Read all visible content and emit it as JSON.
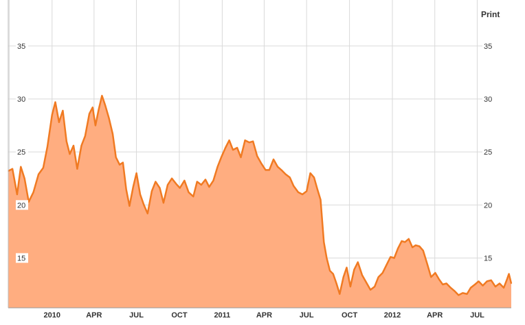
{
  "toolbar": {
    "print_label": "Print"
  },
  "colors": {
    "line": "#f07a22",
    "fill": "#ffad80",
    "grid": "#d9d9d9",
    "tick_box": "#ffffff"
  },
  "chart_data": {
    "type": "area",
    "grid": true,
    "ylim": [
      10.3,
      39.2
    ],
    "y_ticks": [
      15,
      20,
      25,
      30,
      35
    ],
    "y_tick_labels": [
      "15",
      "20",
      "25",
      "30",
      "35"
    ],
    "x_ticks": [
      "2009-10-01",
      "2010-01-01",
      "2010-04-01",
      "2010-07-01",
      "2010-10-01",
      "2011-01-01",
      "2011-04-01",
      "2011-07-01",
      "2011-10-01",
      "2012-01-01",
      "2012-04-01",
      "2012-07-01"
    ],
    "x_tick_labels": [
      "",
      "2010",
      "APR",
      "JUL",
      "OCT",
      "2011",
      "APR",
      "JUL",
      "OCT",
      "2012",
      "APR",
      "JUL"
    ],
    "xlim": [
      "2009-09-29",
      "2012-09-12"
    ],
    "series": [
      {
        "x": [
          "2009-09-29",
          "2009-10-08",
          "2009-10-18",
          "2009-10-26",
          "2009-11-03",
          "2009-11-12",
          "2009-11-22",
          "2009-12-03",
          "2009-12-13",
          "2009-12-22",
          "2010-01-01",
          "2010-01-08",
          "2010-01-16",
          "2010-01-24",
          "2010-02-01",
          "2010-02-08",
          "2010-02-16",
          "2010-02-24",
          "2010-03-05",
          "2010-03-13",
          "2010-03-22",
          "2010-03-29",
          "2010-04-04",
          "2010-04-11",
          "2010-04-18",
          "2010-04-25",
          "2010-05-03",
          "2010-05-11",
          "2010-05-18",
          "2010-05-26",
          "2010-06-02",
          "2010-06-09",
          "2010-06-16",
          "2010-06-24",
          "2010-07-01",
          "2010-07-09",
          "2010-07-17",
          "2010-07-25",
          "2010-08-03",
          "2010-08-11",
          "2010-08-20",
          "2010-08-28",
          "2010-09-06",
          "2010-09-15",
          "2010-09-24",
          "2010-10-02",
          "2010-10-12",
          "2010-10-21",
          "2010-10-31",
          "2010-11-08",
          "2010-11-17",
          "2010-11-26",
          "2010-12-04",
          "2010-12-13",
          "2010-12-22",
          "2010-12-30",
          "2011-01-08",
          "2011-01-16",
          "2011-01-24",
          "2011-02-02",
          "2011-02-10",
          "2011-02-19",
          "2011-02-28",
          "2011-03-08",
          "2011-03-17",
          "2011-03-26",
          "2011-04-04",
          "2011-04-12",
          "2011-04-21",
          "2011-04-30",
          "2011-05-08",
          "2011-05-17",
          "2011-05-26",
          "2011-06-03",
          "2011-06-13",
          "2011-06-22",
          "2011-07-01",
          "2011-07-09",
          "2011-07-17",
          "2011-07-24",
          "2011-07-31",
          "2011-08-07",
          "2011-08-13",
          "2011-08-20",
          "2011-08-27",
          "2011-09-03",
          "2011-09-10",
          "2011-09-18",
          "2011-09-25",
          "2011-10-03",
          "2011-10-11",
          "2011-10-19",
          "2011-10-28",
          "2011-11-06",
          "2011-11-15",
          "2011-11-24",
          "2011-12-02",
          "2011-12-11",
          "2011-12-20",
          "2011-12-28",
          "2012-01-05",
          "2012-01-13",
          "2012-01-21",
          "2012-01-28",
          "2012-02-05",
          "2012-02-13",
          "2012-02-20",
          "2012-02-28",
          "2012-03-07",
          "2012-03-16",
          "2012-03-24",
          "2012-04-02",
          "2012-04-10",
          "2012-04-18",
          "2012-04-26",
          "2012-05-05",
          "2012-05-13",
          "2012-05-22",
          "2012-05-31",
          "2012-06-09",
          "2012-06-17",
          "2012-06-26",
          "2012-07-04",
          "2012-07-13",
          "2012-07-22",
          "2012-07-31",
          "2012-08-09",
          "2012-08-18",
          "2012-08-27",
          "2012-09-03",
          "2012-09-07",
          "2012-09-12"
        ],
        "values": [
          23.2,
          23.4,
          21.0,
          23.6,
          22.5,
          20.3,
          21.2,
          22.9,
          23.5,
          25.5,
          28.5,
          29.7,
          27.8,
          28.9,
          26.0,
          24.8,
          25.6,
          23.4,
          25.6,
          26.5,
          28.6,
          29.2,
          27.5,
          29.0,
          30.3,
          29.4,
          28.2,
          26.7,
          24.5,
          23.8,
          24.0,
          21.5,
          19.9,
          21.7,
          23.0,
          21.0,
          20.0,
          19.2,
          21.3,
          22.2,
          21.6,
          20.2,
          21.9,
          22.5,
          22.0,
          21.6,
          22.3,
          21.2,
          20.8,
          22.2,
          21.9,
          22.4,
          21.7,
          22.3,
          23.6,
          24.5,
          25.4,
          26.1,
          25.2,
          25.4,
          24.5,
          26.1,
          25.9,
          26.0,
          24.6,
          23.9,
          23.3,
          23.3,
          24.3,
          23.6,
          23.3,
          22.9,
          22.6,
          21.8,
          21.2,
          21.0,
          21.3,
          23.0,
          22.6,
          21.5,
          20.5,
          16.5,
          15.0,
          13.8,
          13.5,
          12.6,
          11.6,
          13.2,
          14.1,
          12.3,
          13.9,
          14.6,
          13.4,
          12.7,
          12.0,
          12.3,
          13.2,
          13.6,
          14.4,
          15.1,
          15.0,
          15.9,
          16.6,
          16.5,
          16.8,
          16.0,
          16.2,
          16.1,
          15.7,
          14.4,
          13.2,
          13.6,
          13.0,
          12.5,
          12.6,
          12.2,
          11.9,
          11.5,
          11.7,
          11.6,
          12.2,
          12.5,
          12.8,
          12.4,
          12.8,
          12.9,
          12.3,
          12.6,
          12.2,
          13.0,
          13.5,
          12.6
        ]
      }
    ]
  }
}
